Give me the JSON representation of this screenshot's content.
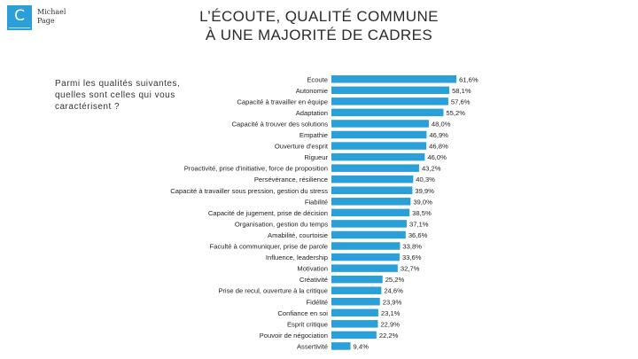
{
  "logo": {
    "letter": "C",
    "brand_line1": "Michael",
    "brand_line2": "Page"
  },
  "title": {
    "line1": "L’ÉCOUTE, QUALITÉ COMMUNE",
    "line2": "À UNE MAJORITÉ DE CADRES"
  },
  "question": "Parmi les qualités suivantes, quelles sont celles qui vous caractérisent ?",
  "colors": {
    "bar": "#2a9fd8",
    "logo_bg": "#2a9fd8"
  },
  "chart_data": {
    "type": "bar",
    "orientation": "horizontal",
    "title": "L’ÉCOUTE, QUALITÉ COMMUNE À UNE MAJORITÉ DE CADRES",
    "xlabel": "",
    "ylabel": "",
    "xlim": [
      0,
      62
    ],
    "grid": false,
    "categories": [
      "Ecoute",
      "Autonomie",
      "Capacité à travailler en équipe",
      "Adaptation",
      "Capacité à trouver des solutions",
      "Empathie",
      "Ouverture d'esprit",
      "Rigueur",
      "Proactivité, prise d'initiative, force de proposition",
      "Persévérance, résilience",
      "Capacité à travailler sous pression, gestion du stress",
      "Fiabilité",
      "Capacité de jugement, prise de décision",
      "Organisation, gestion du temps",
      "Amabilité, courtoisie",
      "Faculté à communiquer, prise de parole",
      "Influence, leadership",
      "Motivation",
      "Créativité",
      "Prise de recul, ouverture à la critique",
      "Fidélité",
      "Confiance en soi",
      "Esprit critique",
      "Pouvoir de négociation",
      "Assertivité"
    ],
    "values": [
      61.6,
      58.1,
      57.6,
      55.2,
      48.0,
      46.9,
      46.8,
      46.0,
      43.2,
      40.3,
      39.9,
      39.0,
      38.5,
      37.1,
      36.6,
      33.8,
      33.6,
      32.7,
      25.2,
      24.6,
      23.9,
      23.1,
      22.9,
      22.2,
      9.4
    ],
    "value_labels": [
      "61,6%",
      "58,1%",
      "57,6%",
      "55,2%",
      "48,0%",
      "46,9%",
      "46,8%",
      "46,0%",
      "43,2%",
      "40,3%",
      "39,9%",
      "39,0%",
      "38,5%",
      "37,1%",
      "36,6%",
      "33,8%",
      "33,6%",
      "32,7%",
      "25,2%",
      "24,6%",
      "23,9%",
      "23,1%",
      "22,9%",
      "22,2%",
      "9,4%"
    ]
  }
}
